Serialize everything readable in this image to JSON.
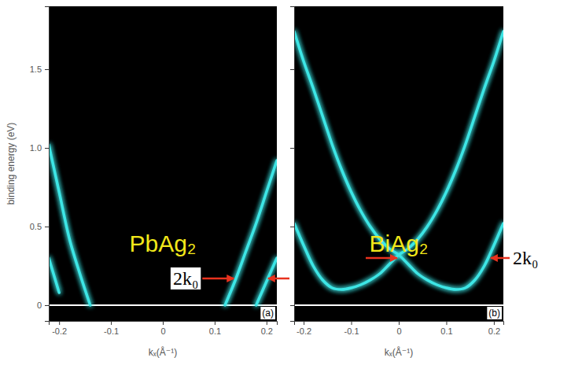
{
  "chart_data": [
    {
      "type": "line",
      "label": "PbAg₂",
      "panel": "(a)",
      "xlabel": "kₓ(Å⁻¹)",
      "ylabel": "binding energy (eV)",
      "color": "#3ee6e6",
      "xlim": [
        -0.22,
        0.22
      ],
      "xticks": [
        -0.2,
        -0.1,
        0,
        0.1,
        0.2
      ],
      "ylim": [
        -0.1,
        1.9
      ],
      "yticks": [
        0,
        0.5,
        {
          "value": 1,
          "label": "1.0"
        },
        1.5
      ],
      "fermi_level": 0,
      "x": [
        -0.22,
        -0.2,
        -0.18,
        -0.16,
        -0.14,
        -0.12,
        -0.1,
        -0.08,
        -0.06,
        -0.04,
        -0.02,
        0,
        0.02,
        0.04,
        0.06,
        0.08,
        0.1,
        0.12,
        0.14,
        0.16,
        0.18,
        0.2,
        0.22
      ],
      "series": [
        {
          "values": [
            1.02,
            0.72,
            0.42,
            0.2,
            0,
            null,
            null,
            null,
            null,
            null,
            null,
            null,
            null,
            null,
            null,
            null,
            null,
            0,
            0.16,
            0.34,
            0.52,
            0.72,
            0.92
          ]
        },
        {
          "values": [
            0.3,
            0.08,
            null,
            null,
            null,
            null,
            null,
            null,
            null,
            null,
            null,
            null,
            null,
            null,
            null,
            null,
            null,
            null,
            null,
            null,
            0,
            0.15,
            0.3
          ]
        }
      ],
      "annotations": [
        {
          "text": "2k₀",
          "points": [
            {
              "x": 0.14,
              "y": 0.17
            },
            {
              "x": 0.2,
              "y": 0.17
            }
          ]
        }
      ]
    },
    {
      "type": "line",
      "label": "BiAg₂",
      "panel": "(b)",
      "xlabel": "kₓ(Å⁻¹)",
      "color": "#3ee6e6",
      "tick_labels": "x",
      "xlim": [
        -0.22,
        0.22
      ],
      "xticks": [
        -0.2,
        -0.1,
        0,
        0.1,
        0.2
      ],
      "ylim": [
        -0.1,
        1.9
      ],
      "yticks": [
        0,
        0.5,
        1,
        1.5
      ],
      "fermi_level": 0,
      "x": [
        -0.22,
        -0.2,
        -0.18,
        -0.16,
        -0.14,
        -0.12,
        -0.1,
        -0.08,
        -0.06,
        -0.04,
        -0.02,
        0,
        0.02,
        0.04,
        0.06,
        0.08,
        0.1,
        0.12,
        0.14,
        0.16,
        0.18,
        0.2,
        0.22
      ],
      "series": [
        {
          "values": [
            1.74,
            1.55,
            1.38,
            1.2,
            1.02,
            0.86,
            0.72,
            0.6,
            0.5,
            0.42,
            0.36,
            0.32,
            0.26,
            0.2,
            0.16,
            0.13,
            0.11,
            0.1,
            0.11,
            0.16,
            0.25,
            0.38,
            0.52
          ]
        },
        {
          "values": [
            0.52,
            0.38,
            0.25,
            0.16,
            0.11,
            0.1,
            0.11,
            0.13,
            0.16,
            0.2,
            0.26,
            0.32,
            0.36,
            0.42,
            0.5,
            0.6,
            0.72,
            0.86,
            1.02,
            1.2,
            1.38,
            1.55,
            1.74
          ]
        }
      ],
      "annotations": [
        {
          "text": "2k₀",
          "points": [
            {
              "x": 0,
              "y": 0.3
            },
            {
              "x": 0.19,
              "y": 0.3
            }
          ]
        }
      ]
    }
  ]
}
